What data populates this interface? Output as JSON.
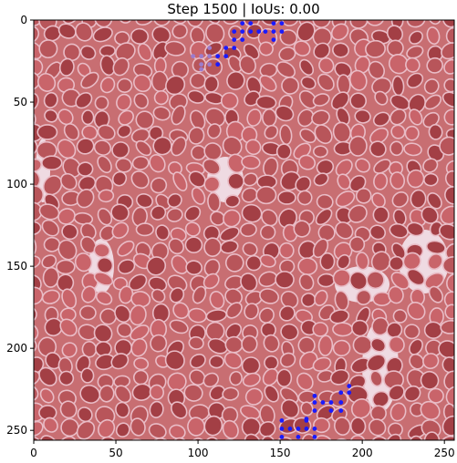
{
  "chart_data": {
    "type": "image",
    "title": "Step 1500 | IoUs: 0.00",
    "xlabel": "",
    "ylabel": "",
    "xlim": [
      0,
      256
    ],
    "ylim": [
      256,
      0
    ],
    "xticks": [
      0,
      50,
      100,
      150,
      200,
      250
    ],
    "yticks": [
      0,
      50,
      100,
      150,
      200,
      250
    ],
    "grid": false,
    "legend": "none",
    "background": "histology tissue patch (pink/red cells with lighter gaps)",
    "colors": {
      "tissue_base": "#c86e72",
      "cell_dark": "#a33f45",
      "membrane": "#e9bcc6",
      "gap": "#f3e6ee",
      "predicted_points": "#1a1aff",
      "faint_points": "#9c7ccc"
    },
    "series": [
      {
        "name": "",
        "color": "#1a1aff",
        "points": [
          [
            127,
            2
          ],
          [
            132,
            2
          ],
          [
            146,
            2
          ],
          [
            151,
            2
          ],
          [
            122,
            7
          ],
          [
            127,
            7
          ],
          [
            132,
            7
          ],
          [
            137,
            7
          ],
          [
            141,
            7
          ],
          [
            146,
            7
          ],
          [
            151,
            7
          ],
          [
            122,
            12
          ],
          [
            127,
            12
          ],
          [
            146,
            12
          ],
          [
            117,
            17
          ],
          [
            122,
            17
          ],
          [
            112,
            22
          ],
          [
            117,
            22
          ],
          [
            112,
            27
          ],
          [
            192,
            223
          ],
          [
            187,
            227
          ],
          [
            192,
            227
          ],
          [
            171,
            229
          ],
          [
            171,
            233
          ],
          [
            176,
            233
          ],
          [
            181,
            233
          ],
          [
            187,
            233
          ],
          [
            171,
            238
          ],
          [
            181,
            238
          ],
          [
            187,
            238
          ],
          [
            166,
            243
          ],
          [
            151,
            244
          ],
          [
            166,
            244
          ],
          [
            151,
            249
          ],
          [
            156,
            249
          ],
          [
            161,
            249
          ],
          [
            166,
            249
          ],
          [
            171,
            249
          ],
          [
            151,
            254
          ],
          [
            161,
            254
          ],
          [
            171,
            254
          ]
        ]
      },
      {
        "name": "",
        "color": "#9c7ccc",
        "points": [
          [
            107,
            17
          ],
          [
            107,
            22
          ],
          [
            102,
            22
          ],
          [
            107,
            27
          ],
          [
            102,
            27
          ],
          [
            97,
            22
          ],
          [
            102,
            30
          ]
        ]
      }
    ]
  }
}
